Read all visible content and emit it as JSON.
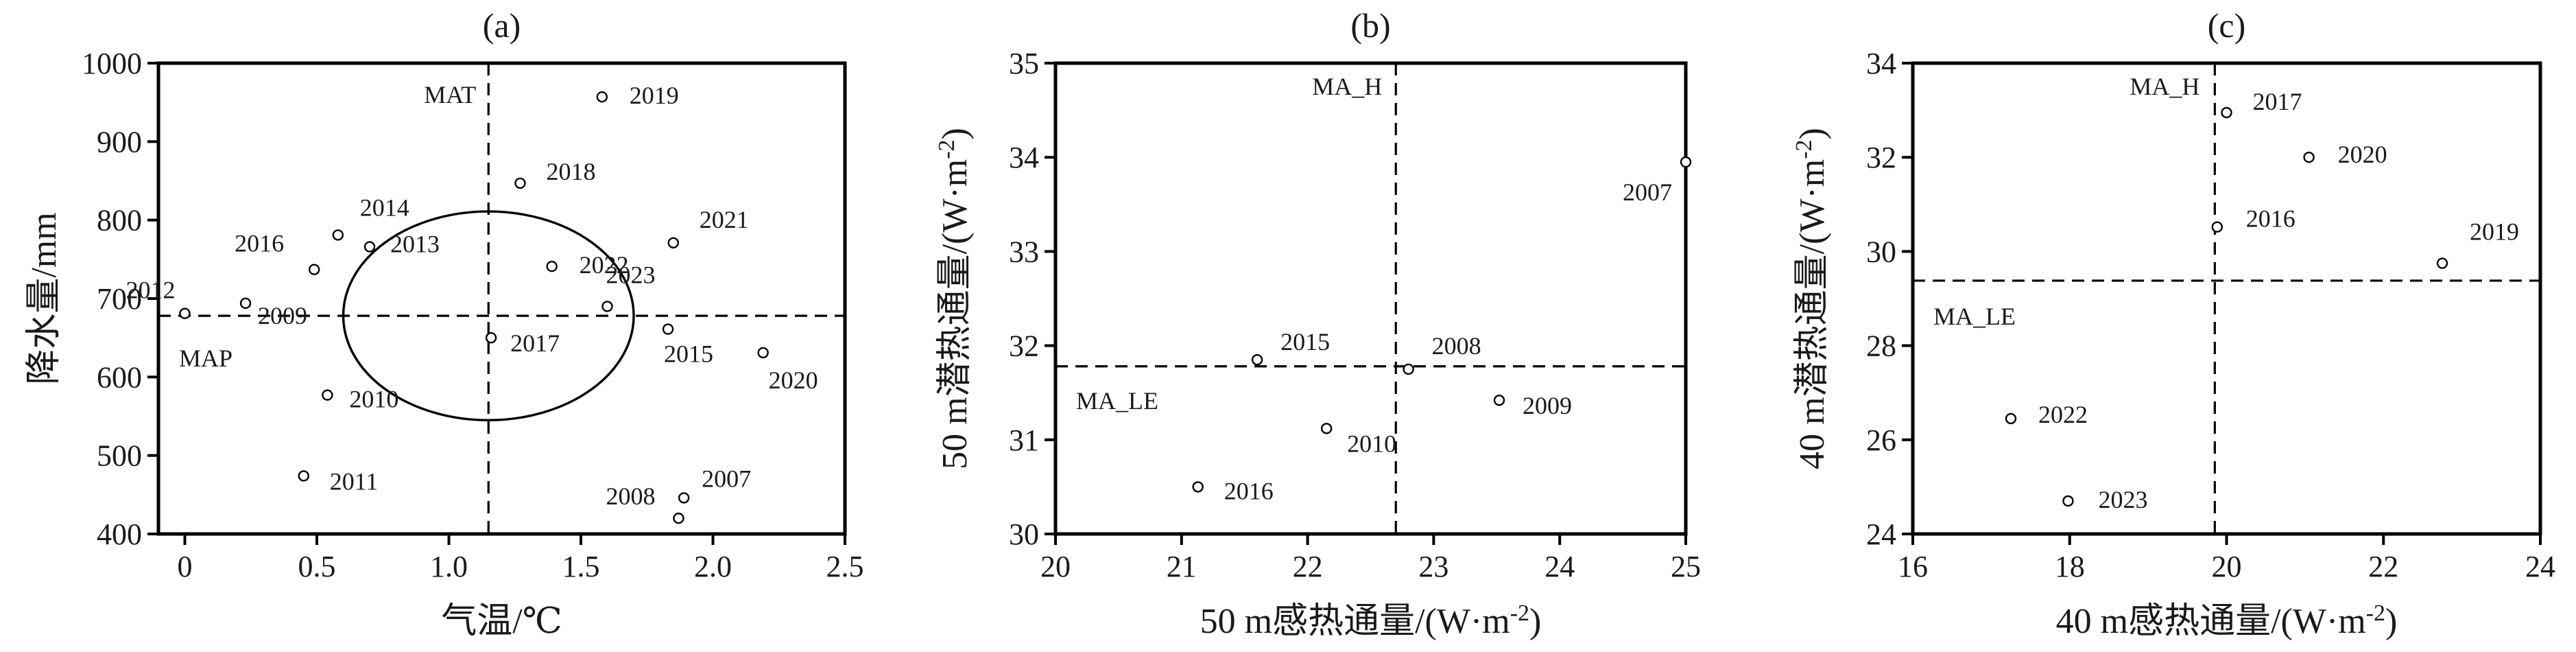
{
  "chart_data": [
    {
      "type": "scatter",
      "title": "(a)",
      "xlabel": "气温/℃",
      "ylabel": "降水量/mm",
      "xlim": [
        -0.1,
        2.5
      ],
      "ylim": [
        400,
        1000
      ],
      "xticks": [
        0,
        0.5,
        1.0,
        1.5,
        2.0,
        2.5
      ],
      "xtick_labels": [
        "0",
        "0.5",
        "1.0",
        "1.5",
        "2.0",
        "2.5"
      ],
      "yticks": [
        400,
        500,
        600,
        700,
        800,
        900,
        1000
      ],
      "ytick_labels": [
        "400",
        "500",
        "600",
        "700",
        "800",
        "900",
        "1000"
      ],
      "points": [
        {
          "x": 0.0,
          "y": 681,
          "label": "2012"
        },
        {
          "x": 0.23,
          "y": 694,
          "label": "2009"
        },
        {
          "x": 0.49,
          "y": 737,
          "label": "2016"
        },
        {
          "x": 0.58,
          "y": 781,
          "label": "2014"
        },
        {
          "x": 0.7,
          "y": 766,
          "label": "2013"
        },
        {
          "x": 0.54,
          "y": 577,
          "label": "2010"
        },
        {
          "x": 0.45,
          "y": 474,
          "label": "2011"
        },
        {
          "x": 1.16,
          "y": 650,
          "label": "2017"
        },
        {
          "x": 1.27,
          "y": 847,
          "label": "2018"
        },
        {
          "x": 1.39,
          "y": 741,
          "label": "2022"
        },
        {
          "x": 1.58,
          "y": 957,
          "label": "2019"
        },
        {
          "x": 1.6,
          "y": 690,
          "label": "2023"
        },
        {
          "x": 1.83,
          "y": 661,
          "label": "2015"
        },
        {
          "x": 1.85,
          "y": 771,
          "label": "2021"
        },
        {
          "x": 2.19,
          "y": 631,
          "label": "2020"
        },
        {
          "x": 1.89,
          "y": 446,
          "label": "2007"
        },
        {
          "x": 1.87,
          "y": 420,
          "label": "2008"
        }
      ],
      "vline": {
        "x": 1.15,
        "label": "MAT"
      },
      "hline": {
        "y": 678,
        "label": "MAP"
      },
      "ellipse": {
        "cx": 1.15,
        "cy": 678,
        "rx": 0.55,
        "ry": 133
      }
    },
    {
      "type": "scatter",
      "title": "(b)",
      "xlabel": "50 m感热通量/(W·m-2)",
      "ylabel": "50 m潜热通量/(W·m-2)",
      "xlim": [
        20,
        25
      ],
      "ylim": [
        30,
        35
      ],
      "xticks": [
        20,
        21,
        22,
        23,
        24,
        25
      ],
      "xtick_labels": [
        "20",
        "21",
        "22",
        "23",
        "24",
        "25"
      ],
      "yticks": [
        30,
        31,
        32,
        33,
        34,
        35
      ],
      "ytick_labels": [
        "30",
        "31",
        "32",
        "33",
        "34",
        "35"
      ],
      "points": [
        {
          "x": 25.0,
          "y": 33.95,
          "label": "2007"
        },
        {
          "x": 21.6,
          "y": 31.85,
          "label": "2015"
        },
        {
          "x": 22.8,
          "y": 31.75,
          "label": "2008"
        },
        {
          "x": 22.15,
          "y": 31.12,
          "label": "2010"
        },
        {
          "x": 23.52,
          "y": 31.42,
          "label": "2009"
        },
        {
          "x": 21.13,
          "y": 30.5,
          "label": "2016"
        }
      ],
      "vline": {
        "x": 22.7,
        "label": "MA_H"
      },
      "hline": {
        "y": 31.78,
        "label": "MA_LE"
      }
    },
    {
      "type": "scatter",
      "title": "(c)",
      "xlabel": "40 m感热通量/(W·m-2)",
      "ylabel": "40 m潜热通量/(W·m-2)",
      "xlim": [
        16,
        24
      ],
      "ylim": [
        24,
        34
      ],
      "xticks": [
        16,
        18,
        20,
        22,
        24
      ],
      "xtick_labels": [
        "16",
        "18",
        "20",
        "22",
        "24"
      ],
      "yticks": [
        24,
        26,
        28,
        30,
        32,
        34
      ],
      "ytick_labels": [
        "24",
        "26",
        "28",
        "30",
        "32",
        "34"
      ],
      "points": [
        {
          "x": 20.0,
          "y": 32.95,
          "label": "2017"
        },
        {
          "x": 21.05,
          "y": 32.0,
          "label": "2020"
        },
        {
          "x": 19.88,
          "y": 30.52,
          "label": "2016"
        },
        {
          "x": 22.75,
          "y": 29.75,
          "label": "2019"
        },
        {
          "x": 17.25,
          "y": 26.45,
          "label": "2022"
        },
        {
          "x": 17.98,
          "y": 24.7,
          "label": "2023"
        }
      ],
      "vline": {
        "x": 19.85,
        "label": "MA_H"
      },
      "hline": {
        "y": 29.38,
        "label": "MA_LE"
      }
    }
  ]
}
